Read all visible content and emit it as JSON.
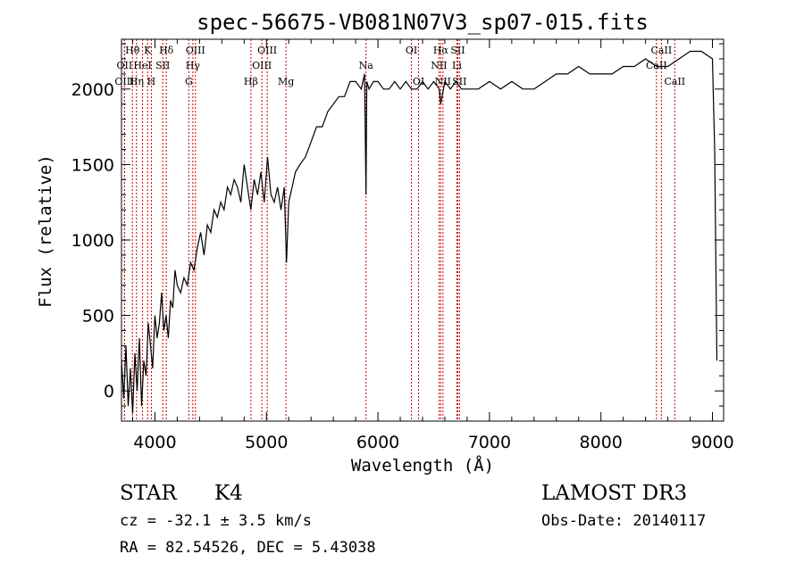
{
  "chart_data": {
    "type": "line",
    "title": "spec-56675-VB081N07V3_sp07-015.fits",
    "xlabel": "Wavelength (Å)",
    "ylabel": "Flux (relative)",
    "xlim": [
      3700,
      9100
    ],
    "ylim": [
      -200,
      2330
    ],
    "x_ticks": [
      4000,
      5000,
      6000,
      7000,
      8000,
      9000
    ],
    "x_tick_labels": [
      "4000",
      "5000",
      "6000",
      "7000",
      "8000",
      "9000"
    ],
    "y_ticks": [
      0,
      500,
      1000,
      1500,
      2000
    ],
    "y_tick_labels": [
      "0",
      "500",
      "1000",
      "1500",
      "2000"
    ],
    "series": [
      {
        "name": "flux",
        "x": [
          3700,
          3720,
          3740,
          3760,
          3780,
          3800,
          3820,
          3840,
          3860,
          3880,
          3900,
          3920,
          3940,
          3960,
          3980,
          4000,
          4020,
          4040,
          4060,
          4080,
          4100,
          4120,
          4140,
          4160,
          4180,
          4200,
          4230,
          4260,
          4290,
          4320,
          4350,
          4380,
          4410,
          4440,
          4470,
          4500,
          4530,
          4560,
          4590,
          4620,
          4650,
          4680,
          4710,
          4740,
          4770,
          4800,
          4830,
          4860,
          4890,
          4920,
          4950,
          4980,
          5010,
          5040,
          5070,
          5100,
          5130,
          5160,
          5180,
          5200,
          5230,
          5260,
          5300,
          5350,
          5400,
          5450,
          5500,
          5550,
          5600,
          5650,
          5700,
          5750,
          5800,
          5850,
          5880,
          5893,
          5900,
          5920,
          5960,
          6000,
          6050,
          6100,
          6150,
          6200,
          6250,
          6300,
          6350,
          6400,
          6450,
          6500,
          6550,
          6563,
          6600,
          6650,
          6700,
          6750,
          6800,
          6900,
          7000,
          7100,
          7200,
          7300,
          7400,
          7500,
          7600,
          7700,
          7800,
          7900,
          8000,
          8100,
          8200,
          8300,
          8400,
          8500,
          8600,
          8700,
          8800,
          8900,
          9000,
          9020,
          9040
        ],
        "y": [
          200,
          -50,
          300,
          -100,
          150,
          -150,
          250,
          0,
          350,
          -100,
          200,
          100,
          450,
          300,
          150,
          500,
          350,
          450,
          650,
          400,
          500,
          350,
          600,
          550,
          800,
          700,
          650,
          750,
          700,
          850,
          800,
          950,
          1050,
          900,
          1100,
          1050,
          1200,
          1150,
          1250,
          1200,
          1350,
          1300,
          1400,
          1350,
          1250,
          1500,
          1350,
          1200,
          1400,
          1300,
          1450,
          1250,
          1550,
          1300,
          1250,
          1350,
          1200,
          1350,
          850,
          1250,
          1350,
          1450,
          1500,
          1550,
          1650,
          1750,
          1750,
          1850,
          1900,
          1950,
          1950,
          2050,
          2050,
          2000,
          2100,
          1300,
          2050,
          2000,
          2050,
          2050,
          2000,
          2000,
          2050,
          2000,
          2050,
          2000,
          2000,
          2050,
          2000,
          2050,
          2000,
          1900,
          2050,
          2000,
          2050,
          2000,
          2000,
          2000,
          2050,
          2000,
          2050,
          2000,
          2000,
          2050,
          2100,
          2100,
          2150,
          2100,
          2100,
          2100,
          2150,
          2150,
          2200,
          2150,
          2150,
          2200,
          2250,
          2250,
          2200,
          1600,
          200
        ]
      }
    ],
    "spectral_lines": [
      {
        "label": "Hθ",
        "wavelength": 3798,
        "row": 0
      },
      {
        "label": "OII",
        "wavelength": 3727,
        "row": 1
      },
      {
        "label": "OIII",
        "wavelength": 3727,
        "row": 2
      },
      {
        "label": "Hη",
        "wavelength": 3835,
        "row": 2
      },
      {
        "label": "HeI",
        "wavelength": 3889,
        "row": 1
      },
      {
        "label": "K",
        "wavelength": 3934,
        "row": 0
      },
      {
        "label": "H",
        "wavelength": 3968,
        "row": 2
      },
      {
        "label": "SII",
        "wavelength": 4070,
        "row": 1
      },
      {
        "label": "Hδ",
        "wavelength": 4102,
        "row": 0
      },
      {
        "label": "OIII",
        "wavelength": 4363,
        "row": 0
      },
      {
        "label": "Hγ",
        "wavelength": 4340,
        "row": 1
      },
      {
        "label": "G",
        "wavelength": 4304,
        "row": 2
      },
      {
        "label": "Hβ",
        "wavelength": 4861,
        "row": 2
      },
      {
        "label": "OIII",
        "wavelength": 5007,
        "row": 0
      },
      {
        "label": "OIII",
        "wavelength": 4959,
        "row": 1
      },
      {
        "label": "Mg",
        "wavelength": 5175,
        "row": 2
      },
      {
        "label": "Na",
        "wavelength": 5893,
        "row": 1
      },
      {
        "label": "OI",
        "wavelength": 6300,
        "row": 0
      },
      {
        "label": "OI",
        "wavelength": 6364,
        "row": 2
      },
      {
        "label": "Hα",
        "wavelength": 6563,
        "row": 0
      },
      {
        "label": "NII",
        "wavelength": 6548,
        "row": 1
      },
      {
        "label": "NII",
        "wavelength": 6583,
        "row": 2
      },
      {
        "label": "SII",
        "wavelength": 6716,
        "row": 0
      },
      {
        "label": "Li",
        "wavelength": 6708,
        "row": 1
      },
      {
        "label": "SII",
        "wavelength": 6731,
        "row": 2
      },
      {
        "label": "CaII",
        "wavelength": 8542,
        "row": 0
      },
      {
        "label": "CaII",
        "wavelength": 8498,
        "row": 1
      },
      {
        "label": "CaII",
        "wavelength": 8662,
        "row": 2
      }
    ]
  },
  "info": {
    "object_class": "STAR",
    "subclass": "K4",
    "survey": "LAMOST DR3",
    "cz": "cz = -32.1 ± 3.5 km/s",
    "obs_date": "Obs-Date: 20140117",
    "ra_dec": "RA =  82.54526, DEC =   5.43038"
  },
  "colors": {
    "line_marker": "#cc0000",
    "spectrum": "#000000",
    "axis": "#000000"
  }
}
